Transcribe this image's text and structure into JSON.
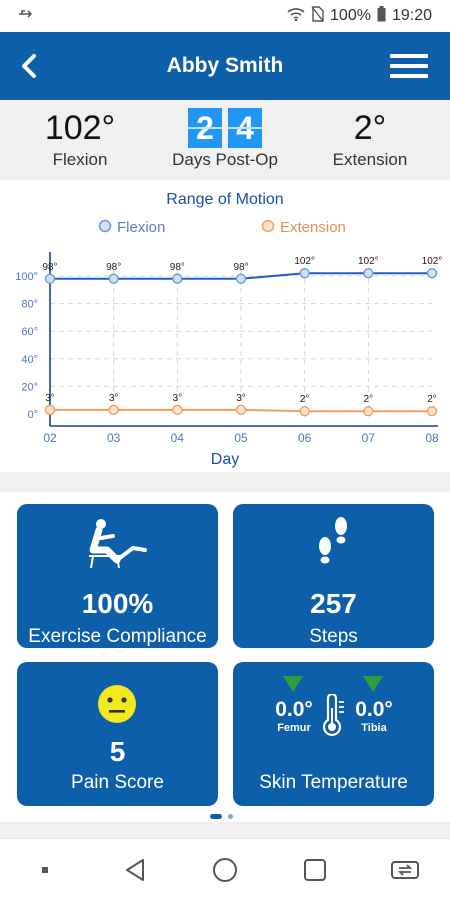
{
  "status_bar": {
    "battery": "100%",
    "time": "19:20",
    "icons": [
      "usb-icon",
      "wifi-icon",
      "no-sim-icon",
      "battery-icon"
    ]
  },
  "header": {
    "title": "Abby Smith",
    "back_icon": "chevron-left-icon",
    "menu_icon": "hamburger-menu-icon"
  },
  "summary": {
    "flexion_value": "102°",
    "flexion_label": "Flexion",
    "days_digits": [
      "2",
      "4"
    ],
    "days_label": "Days Post-Op",
    "extension_value": "2°",
    "extension_label": "Extension"
  },
  "chart_data": {
    "type": "line",
    "title": "Range of Motion",
    "xlabel": "Day",
    "ylabel": "",
    "categories": [
      "02",
      "03",
      "04",
      "05",
      "06",
      "07",
      "08"
    ],
    "y_ticks": [
      "0°",
      "20°",
      "40°",
      "60°",
      "80°",
      "100°"
    ],
    "ylim": [
      0,
      100
    ],
    "grid": true,
    "legend_position": "top",
    "series": [
      {
        "name": "Flexion",
        "values": [
          98,
          98,
          98,
          98,
          102,
          102,
          102
        ],
        "labels": [
          "98°",
          "98°",
          "98°",
          "98°",
          "102°",
          "102°",
          "102°"
        ],
        "color": "#1f5cc4"
      },
      {
        "name": "Extension",
        "values": [
          3,
          3,
          3,
          3,
          2,
          2,
          2
        ],
        "labels": [
          "3°",
          "3°",
          "3°",
          "3°",
          "2°",
          "2°",
          "2°"
        ],
        "color": "#f0a060"
      }
    ]
  },
  "tiles": {
    "exercise": {
      "value": "100%",
      "caption": "Exercise Compliance",
      "icon": "seated-exercise-icon"
    },
    "steps": {
      "value": "257",
      "caption": "Steps",
      "icon": "footprints-icon"
    },
    "pain": {
      "value": "5",
      "caption": "Pain Score",
      "icon": "neutral-face-icon"
    },
    "skin": {
      "caption": "Skin Temperature",
      "femur_value": "0.0°",
      "femur_label": "Femur",
      "tibia_value": "0.0°",
      "tibia_label": "Tibia",
      "icon": "thermometer-icon"
    }
  },
  "pager": {
    "pages": 2,
    "active": 1
  },
  "nav_bar": {
    "buttons": [
      "dot-icon",
      "back-triangle-icon",
      "home-circle-icon",
      "recents-square-icon",
      "switch-apps-icon"
    ]
  },
  "colors": {
    "primary": "#0e5fa9",
    "flexion": "#1f5cc4",
    "extension": "#f0a060",
    "digit_box": "#2196f3",
    "indicator_green": "#2e9e3e",
    "face_yellow": "#f2e81d"
  }
}
